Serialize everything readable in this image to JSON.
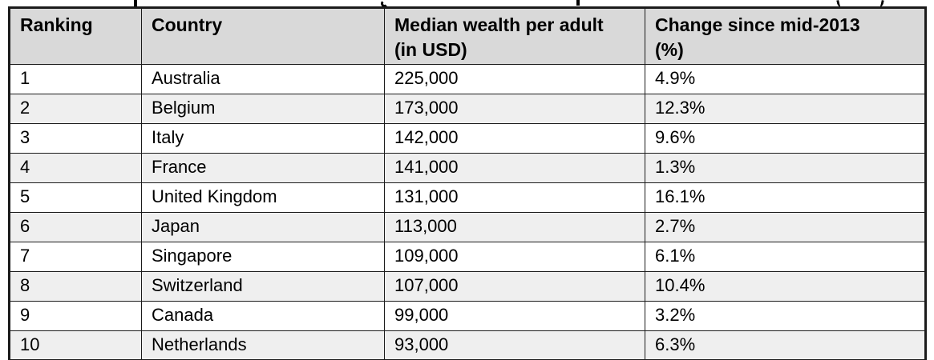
{
  "table": {
    "columns": [
      {
        "key": "ranking",
        "label": "Ranking",
        "line1": "Ranking",
        "line2": ""
      },
      {
        "key": "country",
        "label": "Country",
        "line1": "Country",
        "line2": ""
      },
      {
        "key": "wealth",
        "label": "Median wealth per adult (in USD)",
        "line1": "Median wealth per adult",
        "line2": "(in USD)"
      },
      {
        "key": "change",
        "label": "Change since mid-2013 (%)",
        "line1": "Change since mid-2013",
        "line2": "(%)"
      }
    ],
    "rows": [
      [
        "1",
        "Australia",
        "225,000",
        "4.9%"
      ],
      [
        "2",
        "Belgium",
        "173,000",
        "12.3%"
      ],
      [
        "3",
        "Italy",
        "142,000",
        "9.6%"
      ],
      [
        "4",
        "France",
        "141,000",
        "1.3%"
      ],
      [
        "5",
        "United Kingdom",
        "131,000",
        "16.1%"
      ],
      [
        "6",
        "Japan",
        "113,000",
        "2.7%"
      ],
      [
        "7",
        "Singapore",
        "109,000",
        "6.1%"
      ],
      [
        "8",
        "Switzerland",
        "107,000",
        "10.4%"
      ],
      [
        "9",
        "Canada",
        "99,000",
        "3.2%"
      ],
      [
        "10",
        "Netherlands",
        "93,000",
        "6.3%"
      ]
    ]
  },
  "colors": {
    "header_bg": "#d9d9d9",
    "alt_row_bg": "#efefef",
    "border": "#1b1b1b",
    "text": "#000000"
  },
  "chart_data": {
    "type": "table",
    "title": "",
    "columns": [
      "Ranking",
      "Country",
      "Median wealth per adult (in USD)",
      "Change since mid-2013 (%)"
    ],
    "categories": [
      "Australia",
      "Belgium",
      "Italy",
      "France",
      "United Kingdom",
      "Japan",
      "Singapore",
      "Switzerland",
      "Canada",
      "Netherlands"
    ],
    "series": [
      {
        "name": "Ranking",
        "values": [
          1,
          2,
          3,
          4,
          5,
          6,
          7,
          8,
          9,
          10
        ]
      },
      {
        "name": "Median wealth per adult (in USD)",
        "values": [
          225000,
          173000,
          142000,
          141000,
          131000,
          113000,
          109000,
          107000,
          99000,
          93000
        ]
      },
      {
        "name": "Change since mid-2013 (%)",
        "values": [
          4.9,
          12.3,
          9.6,
          1.3,
          16.1,
          2.7,
          6.1,
          10.4,
          3.2,
          6.3
        ]
      }
    ],
    "layout_hints": {
      "zebra_striping": true,
      "header_shaded": true,
      "grid": true
    }
  }
}
